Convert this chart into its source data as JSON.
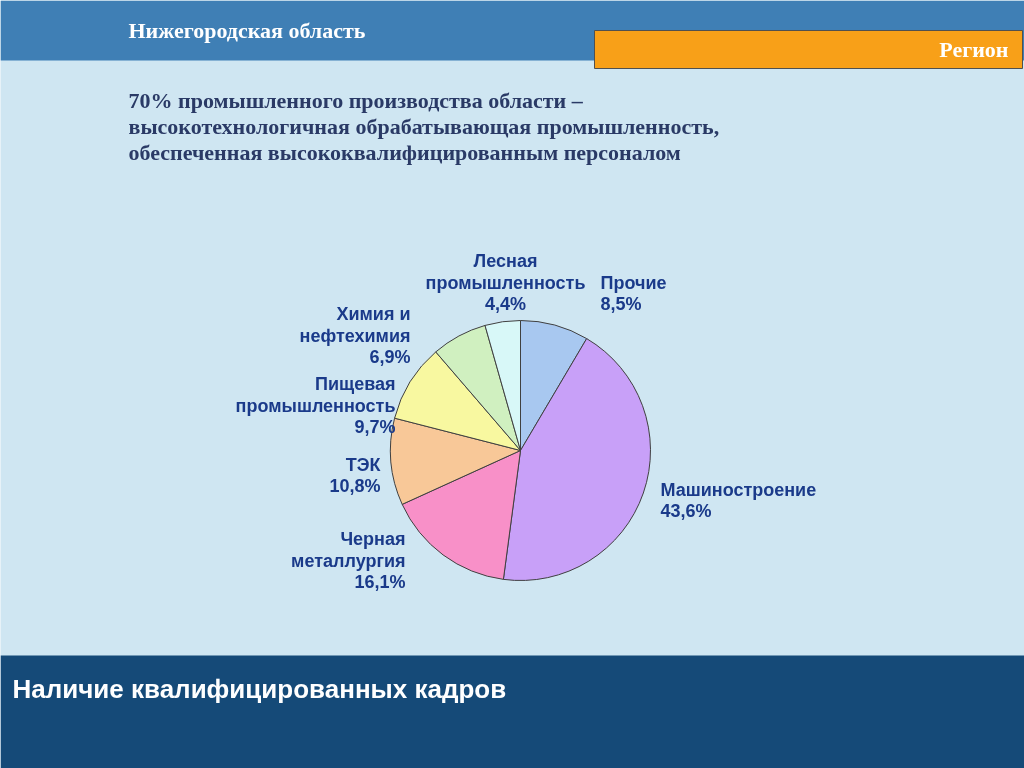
{
  "chart_data": {
    "type": "pie",
    "title": "Нижегородская область",
    "subtitle": "70% промышленного производства области –\nвысокотехнологичная обрабатывающая промышленность,\nобеспеченная высококвалифицированным персоналом",
    "categories": [
      "Прочие",
      "Машиностроение",
      "Черная\nметаллургия",
      "ТЭК",
      "Пищевая\nпромышленность",
      "Химия и\nнефтехимия",
      "Лесная\nпромышленность"
    ],
    "values": [
      8.5,
      43.6,
      16.1,
      10.8,
      9.7,
      6.9,
      4.4
    ],
    "value_labels": [
      "8,5%",
      "43,6%",
      "16,1%",
      "10,8%",
      "9,7%",
      "6,9%",
      "4,4%"
    ],
    "colors": [
      "#a8c8f0",
      "#c8a0f8",
      "#f890c8",
      "#f8c898",
      "#f8f8a0",
      "#d0f0c0",
      "#d8f8f8"
    ],
    "annotations": [
      "Регион",
      "Наличие квалифицированных кадров"
    ]
  }
}
